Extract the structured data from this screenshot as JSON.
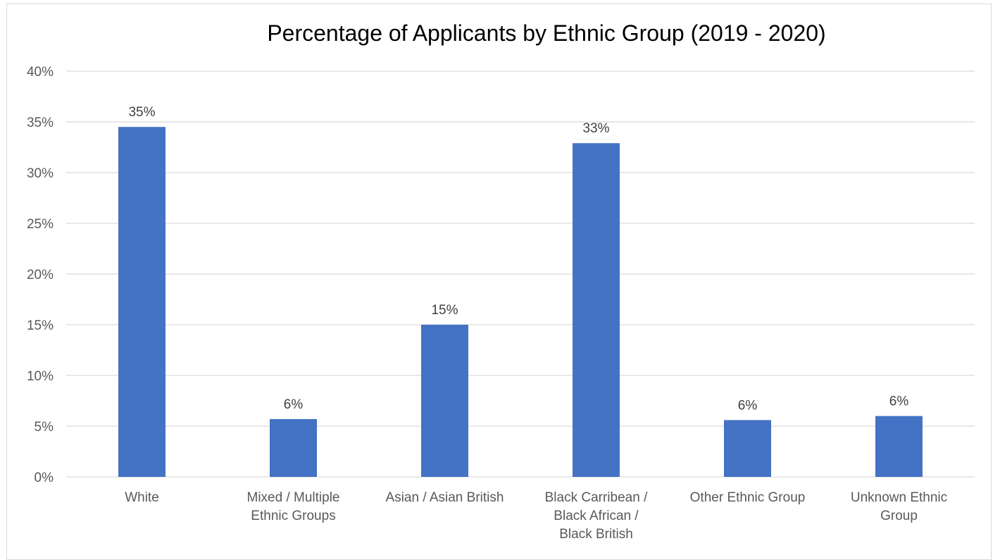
{
  "chart_data": {
    "type": "bar",
    "title": "Percentage of Applicants by Ethnic Group (2019 - 2020)",
    "xlabel": "",
    "ylabel": "",
    "ylim": [
      0,
      40
    ],
    "y_ticks": [
      "0%",
      "5%",
      "10%",
      "15%",
      "20%",
      "25%",
      "30%",
      "35%",
      "40%"
    ],
    "y_tick_values": [
      0,
      5,
      10,
      15,
      20,
      25,
      30,
      35,
      40
    ],
    "categories": [
      [
        "White"
      ],
      [
        "Mixed / Multiple",
        "Ethnic Groups"
      ],
      [
        "Asian / Asian British"
      ],
      [
        "Black Carribean /",
        "Black African /",
        "Black British"
      ],
      [
        "Other Ethnic Group"
      ],
      [
        "Unknown Ethnic",
        "Group"
      ]
    ],
    "values": [
      34.5,
      5.7,
      15.0,
      32.9,
      5.6,
      6.0
    ],
    "data_labels": [
      "35%",
      "6%",
      "15%",
      "33%",
      "6%",
      "6%"
    ],
    "grid": true,
    "legend": "none",
    "colors": {
      "bar": "#4472C4",
      "grid": "#d9d9d9"
    }
  }
}
